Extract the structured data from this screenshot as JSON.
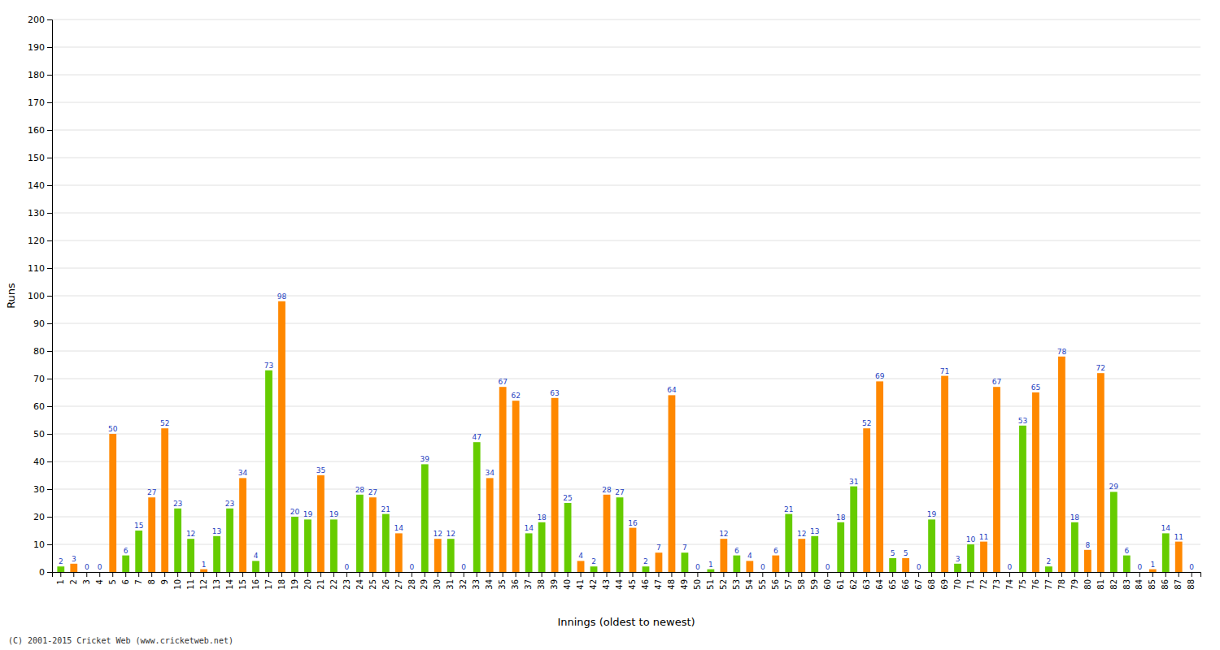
{
  "chart_data": {
    "type": "bar",
    "xlabel": "Innings (oldest to newest)",
    "ylabel": "Runs",
    "annotations": [
      "(C) 2001-2015 Cricket Web (www.cricketweb.net)"
    ],
    "categories": [
      1,
      2,
      3,
      4,
      5,
      6,
      7,
      8,
      9,
      10,
      11,
      12,
      13,
      14,
      15,
      16,
      17,
      18,
      19,
      20,
      21,
      22,
      23,
      24,
      25,
      26,
      27,
      28,
      29,
      30,
      31,
      32,
      33,
      34,
      35,
      36,
      37,
      38,
      39,
      40,
      41,
      42,
      43,
      44,
      45,
      46,
      47,
      48,
      49,
      50,
      51,
      52,
      53,
      54,
      55,
      56,
      57,
      58,
      59,
      60,
      61,
      62,
      63,
      64,
      65,
      66,
      67,
      68,
      69,
      70,
      71,
      72,
      73,
      74,
      75,
      76,
      77,
      78,
      79,
      80,
      81,
      82,
      83,
      84,
      85,
      86,
      87,
      88
    ],
    "values": [
      2,
      3,
      0,
      0,
      50,
      6,
      15,
      27,
      52,
      23,
      12,
      1,
      13,
      23,
      34,
      4,
      73,
      98,
      20,
      19,
      35,
      19,
      0,
      28,
      27,
      21,
      14,
      0,
      39,
      12,
      12,
      0,
      47,
      34,
      67,
      62,
      14,
      18,
      63,
      25,
      4,
      2,
      28,
      27,
      16,
      2,
      7,
      64,
      7,
      0,
      1,
      12,
      6,
      4,
      0,
      6,
      21,
      12,
      13,
      0,
      18,
      31,
      52,
      69,
      5,
      5,
      0,
      19,
      71,
      3,
      10,
      11,
      67,
      0,
      53,
      65,
      2,
      78,
      18,
      8,
      72,
      29,
      6,
      0,
      1,
      14,
      11,
      0
    ],
    "colors": [
      "#66cc00",
      "#ff8800",
      "#66cc00",
      "#ff8800",
      "#ff8800",
      "#66cc00",
      "#66cc00",
      "#ff8800",
      "#ff8800",
      "#66cc00",
      "#66cc00",
      "#ff8800",
      "#66cc00",
      "#66cc00",
      "#ff8800",
      "#66cc00",
      "#66cc00",
      "#ff8800",
      "#66cc00",
      "#66cc00",
      "#ff8800",
      "#66cc00",
      "#ff8800",
      "#66cc00",
      "#ff8800",
      "#66cc00",
      "#ff8800",
      "#ff8800",
      "#66cc00",
      "#ff8800",
      "#66cc00",
      "#ff8800",
      "#66cc00",
      "#ff8800",
      "#ff8800",
      "#ff8800",
      "#66cc00",
      "#66cc00",
      "#ff8800",
      "#66cc00",
      "#ff8800",
      "#66cc00",
      "#ff8800",
      "#66cc00",
      "#ff8800",
      "#66cc00",
      "#ff8800",
      "#ff8800",
      "#66cc00",
      "#ff8800",
      "#66cc00",
      "#ff8800",
      "#66cc00",
      "#ff8800",
      "#66cc00",
      "#ff8800",
      "#66cc00",
      "#ff8800",
      "#66cc00",
      "#ff8800",
      "#66cc00",
      "#66cc00",
      "#ff8800",
      "#ff8800",
      "#66cc00",
      "#ff8800",
      "#ff8800",
      "#66cc00",
      "#ff8800",
      "#66cc00",
      "#66cc00",
      "#ff8800",
      "#ff8800",
      "#ff8800",
      "#66cc00",
      "#ff8800",
      "#66cc00",
      "#ff8800",
      "#66cc00",
      "#ff8800",
      "#ff8800",
      "#66cc00",
      "#66cc00",
      "#ff8800",
      "#ff8800",
      "#66cc00",
      "#ff8800",
      "#66cc00"
    ],
    "ylim": [
      0,
      200
    ],
    "yticks": [
      0,
      10,
      20,
      30,
      40,
      50,
      60,
      70,
      80,
      90,
      100,
      110,
      120,
      130,
      140,
      150,
      160,
      170,
      180,
      190,
      200
    ],
    "grid": true,
    "data_labels": true
  }
}
